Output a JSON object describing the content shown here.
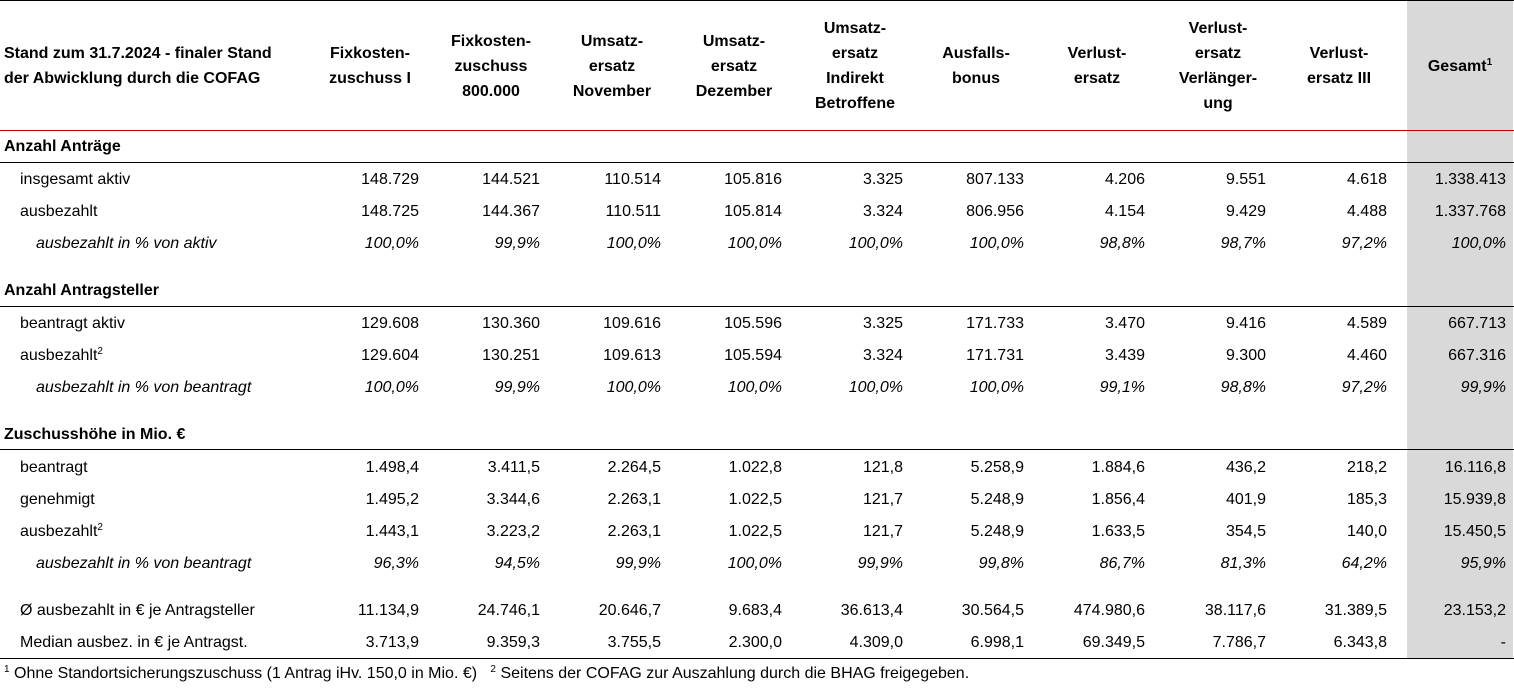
{
  "header": {
    "title_line1": "Stand zum 31.7.2024 - finaler Stand",
    "title_line2": "der Abwicklung durch die COFAG",
    "columns": [
      [
        "Fixkosten-",
        "zuschuss I"
      ],
      [
        "Fixkosten-",
        "zuschuss",
        "800.000"
      ],
      [
        "Umsatz-",
        "ersatz",
        "November"
      ],
      [
        "Umsatz-",
        "ersatz",
        "Dezember"
      ],
      [
        "Umsatz-",
        "ersatz",
        "Indirekt",
        "Betroffene"
      ],
      [
        "Ausfalls-",
        "bonus"
      ],
      [
        "Verlust-",
        "ersatz"
      ],
      [
        "Verlust-",
        "ersatz",
        "Verlänger-",
        "ung"
      ],
      [
        "Verlust-",
        "ersatz III"
      ],
      [
        "Gesamt"
      ]
    ],
    "total_footnote_mark": "1"
  },
  "rows": [
    {
      "kind": "section",
      "label": "Anzahl Anträge"
    },
    {
      "kind": "data",
      "label": "insgesamt aktiv",
      "values": [
        "148.729",
        "144.521",
        "110.514",
        "105.816",
        "3.325",
        "807.133",
        "4.206",
        "9.551",
        "4.618",
        "1.338.413"
      ]
    },
    {
      "kind": "data",
      "label": "ausbezahlt",
      "values": [
        "148.725",
        "144.367",
        "110.511",
        "105.814",
        "3.324",
        "806.956",
        "4.154",
        "9.429",
        "4.488",
        "1.337.768"
      ]
    },
    {
      "kind": "pct",
      "label": "ausbezahlt in % von aktiv",
      "values": [
        "100,0%",
        "99,9%",
        "100,0%",
        "100,0%",
        "100,0%",
        "100,0%",
        "98,8%",
        "98,7%",
        "97,2%",
        "100,0%"
      ]
    },
    {
      "kind": "section",
      "label": "Anzahl Antragsteller"
    },
    {
      "kind": "data",
      "label": "beantragt aktiv",
      "values": [
        "129.608",
        "130.360",
        "109.616",
        "105.596",
        "3.325",
        "171.733",
        "3.470",
        "9.416",
        "4.589",
        "667.713"
      ]
    },
    {
      "kind": "data",
      "label": "ausbezahlt",
      "sup": "2",
      "values": [
        "129.604",
        "130.251",
        "109.613",
        "105.594",
        "3.324",
        "171.731",
        "3.439",
        "9.300",
        "4.460",
        "667.316"
      ]
    },
    {
      "kind": "pct",
      "label": "ausbezahlt in % von beantragt",
      "values": [
        "100,0%",
        "99,9%",
        "100,0%",
        "100,0%",
        "100,0%",
        "100,0%",
        "99,1%",
        "98,8%",
        "97,2%",
        "99,9%"
      ]
    },
    {
      "kind": "section",
      "label": "Zuschusshöhe in Mio. €"
    },
    {
      "kind": "data",
      "label": "beantragt",
      "values": [
        "1.498,4",
        "3.411,5",
        "2.264,5",
        "1.022,8",
        "121,8",
        "5.258,9",
        "1.884,6",
        "436,2",
        "218,2",
        "16.116,8"
      ]
    },
    {
      "kind": "data",
      "label": "genehmigt",
      "values": [
        "1.495,2",
        "3.344,6",
        "2.263,1",
        "1.022,5",
        "121,7",
        "5.248,9",
        "1.856,4",
        "401,9",
        "185,3",
        "15.939,8"
      ]
    },
    {
      "kind": "data",
      "label": "ausbezahlt",
      "sup": "2",
      "values": [
        "1.443,1",
        "3.223,2",
        "2.263,1",
        "1.022,5",
        "121,7",
        "5.248,9",
        "1.633,5",
        "354,5",
        "140,0",
        "15.450,5"
      ]
    },
    {
      "kind": "pct",
      "label": "ausbezahlt in % von beantragt",
      "values": [
        "96,3%",
        "94,5%",
        "99,9%",
        "100,0%",
        "99,9%",
        "99,8%",
        "86,7%",
        "81,3%",
        "64,2%",
        "95,9%"
      ]
    },
    {
      "kind": "data",
      "label": "Ø ausbezahlt in € je Antragsteller",
      "values": [
        "11.134,9",
        "24.746,1",
        "20.646,7",
        "9.683,4",
        "36.613,4",
        "30.564,5",
        "474.980,6",
        "38.117,6",
        "31.389,5",
        "23.153,2"
      ]
    },
    {
      "kind": "data",
      "label": "Median ausbez. in € je Antragst.",
      "values": [
        "3.713,9",
        "9.359,3",
        "3.755,5",
        "2.300,0",
        "4.309,0",
        "6.998,1",
        "69.349,5",
        "7.786,7",
        "6.343,8",
        "-"
      ]
    }
  ],
  "footnote": {
    "mark1": "1",
    "text1": "Ohne Standortsicherungszuschuss (1 Antrag iHv. 150,0 in Mio. €)",
    "mark2": "2",
    "text2": "Seitens der COFAG zur Auszahlung durch die BHAG freigegeben."
  },
  "colors": {
    "total_column_bg": "#d9d9d9",
    "header_rule": "#c00000",
    "rule": "#000000"
  }
}
